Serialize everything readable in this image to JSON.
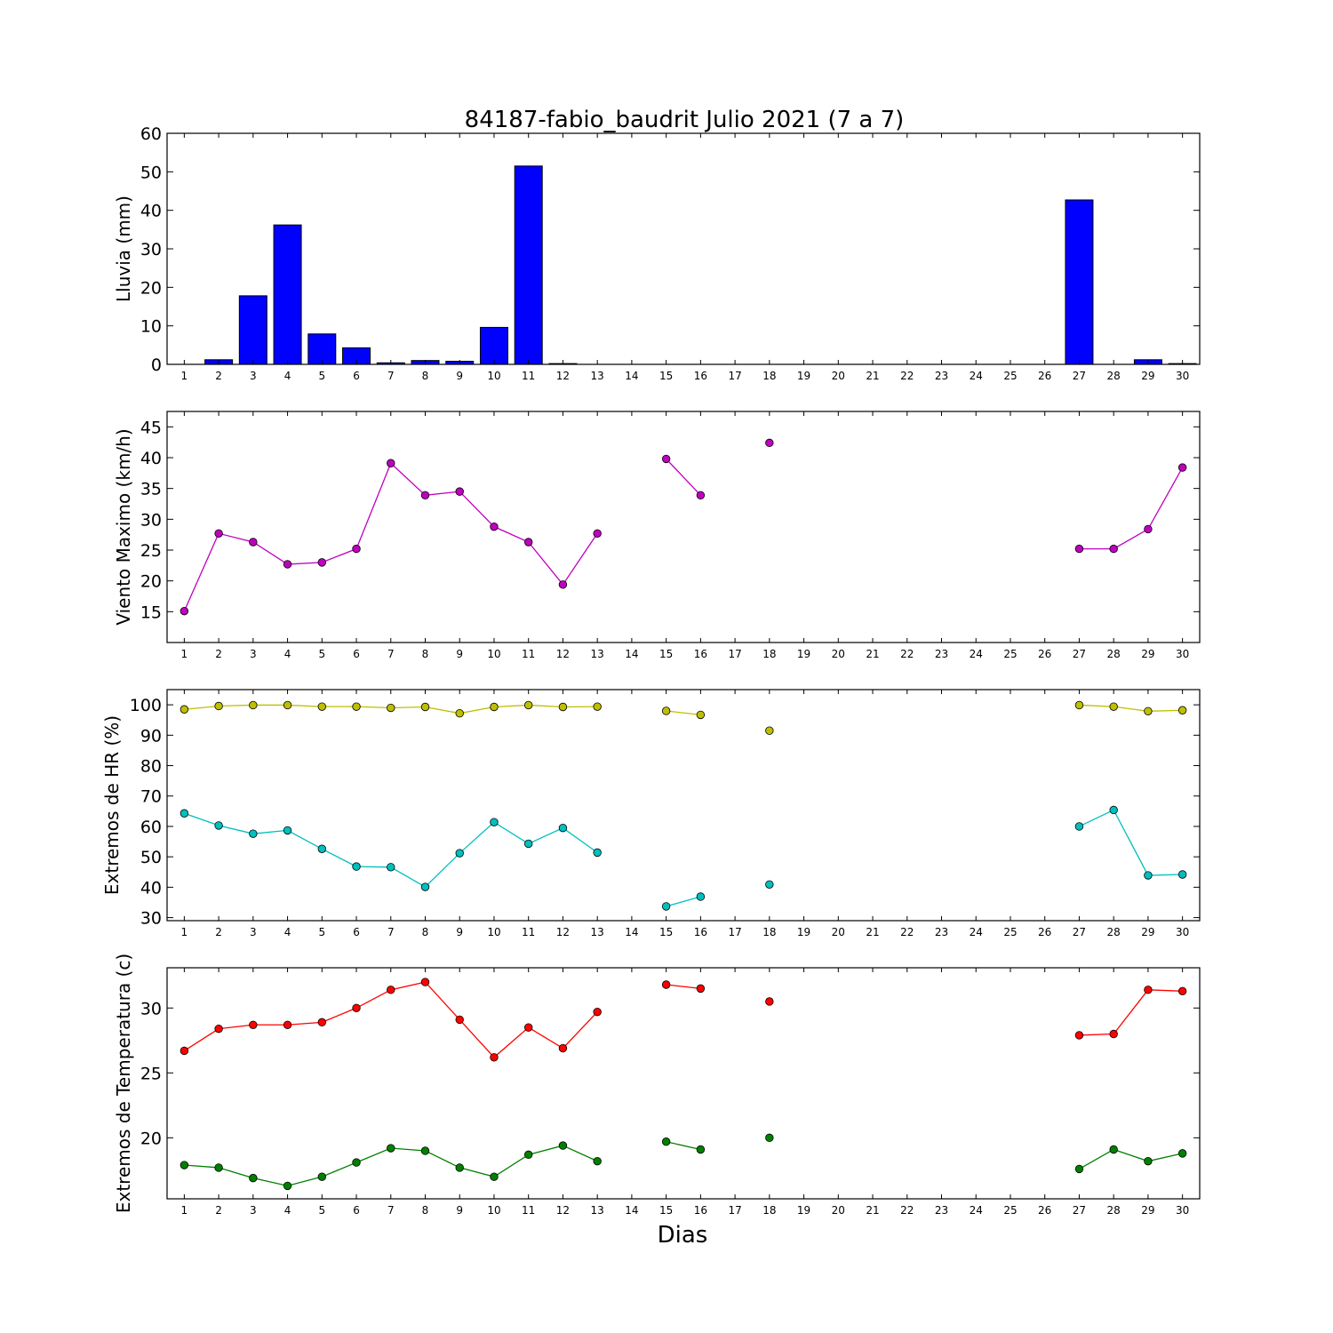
{
  "figure": {
    "title": "84187-fabio_baudrit Julio 2021  (7 a 7)",
    "xlabel": "Dias"
  },
  "chart_data": [
    {
      "type": "bar",
      "ylabel": "Lluvia (mm)",
      "ylim": [
        0,
        60
      ],
      "yticks": [
        0,
        10,
        20,
        30,
        40,
        50,
        60
      ],
      "xlim": [
        0.5,
        30.5
      ],
      "x": [
        1,
        2,
        3,
        4,
        5,
        6,
        7,
        8,
        9,
        10,
        11,
        12,
        13,
        14,
        15,
        16,
        17,
        18,
        19,
        20,
        21,
        22,
        23,
        24,
        25,
        26,
        27,
        28,
        29,
        30
      ],
      "series": [
        {
          "color": "#0000ff",
          "values": [
            0,
            1.2,
            17.8,
            36.2,
            7.9,
            4.3,
            0.4,
            1.0,
            0.8,
            9.6,
            51.5,
            0.2,
            0,
            0,
            0,
            0,
            0,
            0,
            0,
            0,
            0,
            0,
            0,
            0,
            0,
            0,
            42.7,
            0,
            1.2,
            0.2
          ]
        }
      ]
    },
    {
      "type": "line",
      "ylabel": "Viento Maximo (km/h)",
      "ylim": [
        10,
        47.5
      ],
      "yticks": [
        15,
        20,
        25,
        30,
        35,
        40,
        45
      ],
      "xlim": [
        0.5,
        30.5
      ],
      "x": [
        1,
        2,
        3,
        4,
        5,
        6,
        7,
        8,
        9,
        10,
        11,
        12,
        13,
        14,
        15,
        16,
        17,
        18,
        19,
        20,
        21,
        22,
        23,
        24,
        25,
        26,
        27,
        28,
        29,
        30
      ],
      "series": [
        {
          "color": "#bf00bf",
          "values": [
            15.1,
            27.7,
            26.3,
            22.7,
            23.0,
            25.2,
            39.1,
            33.9,
            34.5,
            28.8,
            26.3,
            19.4,
            27.7,
            null,
            39.8,
            33.9,
            null,
            42.4,
            null,
            null,
            null,
            null,
            null,
            null,
            null,
            null,
            25.2,
            25.2,
            28.4,
            38.4
          ]
        }
      ]
    },
    {
      "type": "line",
      "ylabel": "Extremos de HR (%)",
      "ylim": [
        29,
        105
      ],
      "yticks": [
        30,
        40,
        50,
        60,
        70,
        80,
        90,
        100
      ],
      "xlim": [
        0.5,
        30.5
      ],
      "x": [
        1,
        2,
        3,
        4,
        5,
        6,
        7,
        8,
        9,
        10,
        11,
        12,
        13,
        14,
        15,
        16,
        17,
        18,
        19,
        20,
        21,
        22,
        23,
        24,
        25,
        26,
        27,
        28,
        29,
        30
      ],
      "series": [
        {
          "color": "#bfbf00",
          "values": [
            98.5,
            99.6,
            99.9,
            99.9,
            99.4,
            99.4,
            99.0,
            99.3,
            97.2,
            99.3,
            99.9,
            99.3,
            99.4,
            null,
            98.0,
            96.7,
            null,
            91.5,
            null,
            null,
            null,
            null,
            null,
            null,
            null,
            null,
            99.9,
            99.4,
            97.9,
            98.2
          ]
        },
        {
          "color": "#00bfbf",
          "values": [
            64.3,
            60.3,
            57.6,
            58.7,
            52.6,
            46.8,
            46.6,
            40.1,
            51.2,
            61.4,
            54.3,
            59.5,
            51.4,
            null,
            33.7,
            36.9,
            null,
            40.9,
            null,
            null,
            null,
            null,
            null,
            null,
            null,
            null,
            60.0,
            65.4,
            43.9,
            44.2
          ]
        }
      ]
    },
    {
      "type": "line",
      "ylabel": "Extremos de Temperatura (c)",
      "ylim": [
        15.3,
        33.1
      ],
      "yticks": [
        20,
        25,
        30
      ],
      "xlim": [
        0.5,
        30.5
      ],
      "x": [
        1,
        2,
        3,
        4,
        5,
        6,
        7,
        8,
        9,
        10,
        11,
        12,
        13,
        14,
        15,
        16,
        17,
        18,
        19,
        20,
        21,
        22,
        23,
        24,
        25,
        26,
        27,
        28,
        29,
        30
      ],
      "series": [
        {
          "color": "#ff0000",
          "values": [
            26.7,
            28.4,
            28.7,
            28.7,
            28.9,
            30.0,
            31.4,
            32.0,
            29.1,
            26.2,
            28.5,
            26.9,
            29.7,
            null,
            31.8,
            31.5,
            null,
            30.5,
            null,
            null,
            null,
            null,
            null,
            null,
            null,
            null,
            27.9,
            28.0,
            31.4,
            31.3
          ]
        },
        {
          "color": "#008000",
          "values": [
            17.9,
            17.7,
            16.9,
            16.3,
            17.0,
            18.1,
            19.2,
            19.0,
            17.7,
            17.0,
            18.7,
            19.4,
            18.2,
            null,
            19.7,
            19.1,
            null,
            20.0,
            null,
            null,
            null,
            null,
            null,
            null,
            null,
            null,
            17.6,
            19.1,
            18.2,
            18.8
          ]
        }
      ]
    }
  ]
}
